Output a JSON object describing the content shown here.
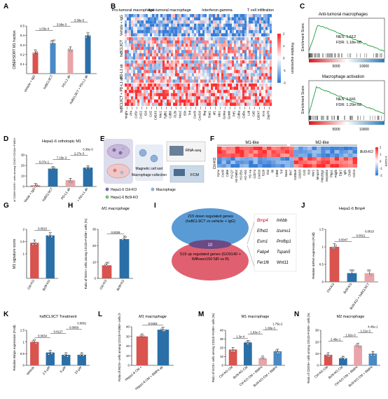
{
  "panel_letters": [
    "A",
    "B",
    "C",
    "D",
    "E",
    "F",
    "G",
    "H",
    "I",
    "J",
    "K",
    "L",
    "M",
    "N"
  ],
  "A": {
    "ylabel": "CIBERSORT M1 fraction",
    "categories": [
      "Vehicle + IgG",
      "hsBCL9CT",
      "PD-L1 ab",
      "hsBCL9CT + PD-L1 ab"
    ],
    "values": [
      0.22,
      0.32,
      0.25,
      0.4
    ],
    "colors": [
      "#d9534f",
      "#4a8ac4",
      "#e8a4a8",
      "#2a6fa8"
    ],
    "pvals": [
      "1.03e-4",
      "3.96e-3",
      "3.38e-5"
    ]
  },
  "B": {
    "groups": [
      "Pro-tumoral macrophage",
      "Anti-tumoral macrophage",
      "Interferon gamma",
      "T cell infiltration"
    ],
    "row_labels": [
      "Vehicle + IgG",
      "hsBCL9CT",
      "PD-L1 ab",
      "hsBCL9CT + PD-L1 ab"
    ],
    "legend_title": "Relative expression",
    "legend_ticks": [
      "-2",
      "-1",
      "0",
      "1",
      "2"
    ],
    "genes": [
      "Vegfa",
      "Pf4",
      "Csf1r",
      "Ccl22",
      "Il10",
      "Ccl2",
      "Cd163",
      "Mrc1",
      "Tgfb1",
      "Cd86",
      "Il12b",
      "Nos2",
      "Il1b",
      "Tnf",
      "Cxcl9",
      "Cxcl10",
      "Ifng",
      "Stat1",
      "Irf1",
      "Ido1",
      "Gzma",
      "Gzmb",
      "Prf1",
      "Cd8a",
      "Cd3e",
      "Lck",
      "Cd2",
      "Cd247",
      "Icos",
      "Zap70"
    ]
  },
  "C": {
    "gsea1": {
      "title": "Anti-tumoral macrophages",
      "nes": "NES: 1.612",
      "fdr": "FDR: 1.18e-05"
    },
    "gsea2": {
      "title": "Macrophage activation",
      "nes": "NES: 1.641",
      "fdr": "FDR: 1.29e-03"
    },
    "ylabel": "Enrichment Score",
    "x_ticks": [
      "5000",
      "10000"
    ]
  },
  "D": {
    "title": "Hepa1-6 orthotopic M1",
    "ylabel": "Ratio of CD86+iNOS+ cells among CD45+CD11b+F4/80+ (%)",
    "categories": [
      "Vehicle + IgG",
      "hsBCL9CT",
      "PD-L1 ab",
      "hsBCL9CT + PD-L1 ab"
    ],
    "values": [
      1,
      17,
      6,
      18
    ],
    "colors": [
      "#d9534f",
      "#2a6fa8",
      "#e8a4a8",
      "#2a6fa8"
    ],
    "pvals": [
      "6.07e-1",
      "7.16e-3",
      "2.27e-3",
      "5.38e-3",
      "3.07e-2",
      "1.44e-2"
    ]
  },
  "E": {
    "labels": [
      "Magnetic cell sort",
      "Macrophage collection",
      "RNA-seq",
      "FCM"
    ],
    "legend": [
      "Hepa1-6 Ctrl-KO",
      "Macrophage",
      "Hepa1-6 Bcl9-KO"
    ]
  },
  "F": {
    "groups": [
      "M1-like",
      "M2-like"
    ],
    "row_labels": [
      "Bcl9-KO",
      "Ctrl-KO"
    ],
    "legend_title": "z-score",
    "legend_ticks": [
      "2",
      "1",
      "0",
      "-1",
      "-2"
    ],
    "genes": [
      "Kynu",
      "Cxcl9",
      "Cd86",
      "H2-Q7",
      "H2-DMb2",
      "H2-Eb1",
      "H2-Ab1",
      "H2-Aa",
      "Cd274",
      "Cxcl10",
      "Il12b",
      "Il1b",
      "Il6",
      "Cd80",
      "Tnf",
      "Nos2",
      "Ifi47",
      "S100a9",
      "Cd163",
      "Ccl2",
      "Il10",
      "Msr1",
      "Mmp19",
      "Pdcd1lg2",
      "Serpinb2",
      "Ptgs1",
      "Pdgfb",
      "Egr2",
      "Igf1",
      "Chil3",
      "Ccl24"
    ]
  },
  "G": {
    "ylabel": "M1 signature score",
    "categories": [
      "Ctrl-KO",
      "Bcl9-KO"
    ],
    "values": [
      1.45,
      1.75
    ],
    "pval": "0.0010"
  },
  "H": {
    "title": "M1 macrophage",
    "ylabel": "Ratio of iNOS+ cells among CD11b+F4/80+ cells (%)",
    "categories": [
      "Ctrl-KO",
      "Bcl9-KO"
    ],
    "values": [
      8,
      24
    ],
    "pval": "0.0039"
  },
  "I": {
    "top_text": "215 down regulated genes (hsBCL9CT vs vehicle + IgG)",
    "overlap": "10",
    "bottom_text": "519 up regulated genes (GO0140 + IMBravo150 NR vs R)",
    "genes_left": [
      "Bmp4",
      "Efhd1",
      "Esm1",
      "Fabp4",
      "Fer1l6"
    ],
    "genes_right": [
      "Inhbb",
      "Izumo1",
      "Pmfbp1",
      "Tspan5",
      "Wnt11"
    ]
  },
  "J": {
    "title": "Hepa1-6 Bmp4",
    "ylabel": "Relative mRNA expression (Fold)",
    "categories": [
      "Ctrl-KO",
      "Bcl9-KO",
      "Bcl9-KO + hsBCL9CT"
    ],
    "values": [
      1.0,
      0.25,
      0.25
    ],
    "pvals": [
      "0.0047",
      "0.0021",
      "0.0010"
    ]
  },
  "K": {
    "title": "hsBCL9CT Treatment",
    "ylabel": "Relative Bmp4 expression (Fold)",
    "categories": [
      "Vehicle",
      "2.5 μM",
      "5 μM",
      "10 μM"
    ],
    "values": [
      1.0,
      0.55,
      0.45,
      0.45
    ],
    "pvals": [
      "0.0034",
      "0.0127",
      "0.0069",
      "0.0081",
      "0.0091",
      "0.3035"
    ]
  },
  "L": {
    "title": "M1 macrophage",
    "ylabel": "Ratio of iNOS+ cells among CD11b+F4/80+ cells (%)",
    "categories": [
      "Hepa1-6 CM +",
      "Hepa1-6 CM + BMP4 ab"
    ],
    "values": [
      30,
      37
    ],
    "pval": "0.0463"
  },
  "M": {
    "title": "M1 macrophage",
    "ylabel": "Ratio of iNOS+ cells among CD11b+F4/80+ cells (%)",
    "categories": [
      "Ctrl-KO CM",
      "Bcl9-KO CM",
      "Ctrl-KO CM + BMP4",
      "Bcl9-KO CM + BMP4"
    ],
    "values": [
      18,
      26,
      8,
      16
    ],
    "pvals": [
      "1.3e-4",
      "1.93e-3",
      "1.08e-3",
      "1.75e-2",
      "1.08e-3",
      "2.05e-2"
    ]
  },
  "N": {
    "title": "M2 macrophage",
    "ylabel": "Ratio of CD206+ cells among CD11b+F4/80+ cells (%)",
    "categories": [
      "Ctrl-KO CM",
      "Bcl9-KO CM",
      "Ctrl-KO CM + BMP4",
      "Bcl9-KO CM + BMP4"
    ],
    "values": [
      9,
      6,
      17,
      10
    ],
    "pvals": [
      "2.48e-1",
      "1.92e-3",
      "1.21e-3",
      "4.45e-1",
      "2.7e-4",
      "1.48e-3"
    ]
  }
}
